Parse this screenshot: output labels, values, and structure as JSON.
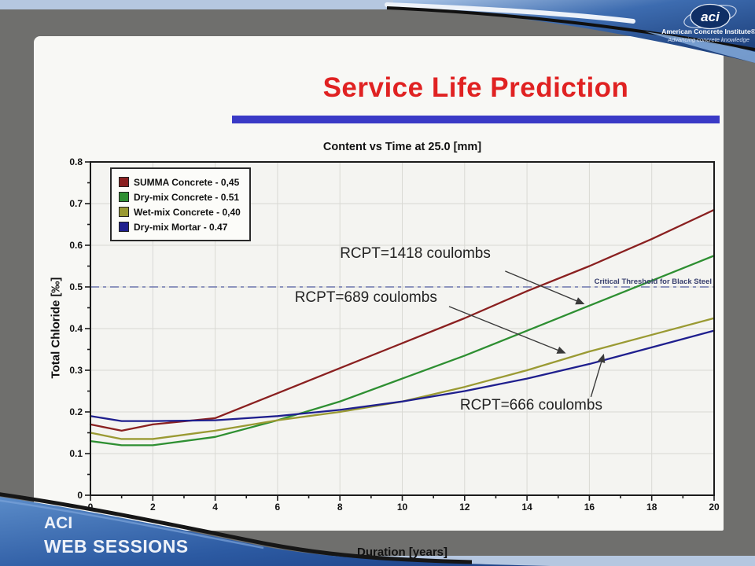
{
  "branding": {
    "logo_text": "aci",
    "institute_name": "American Concrete Institute®",
    "tagline": "Advancing concrete knowledge",
    "footer_line1": "ACI",
    "footer_line2": "WEB SESSIONS"
  },
  "slide": {
    "title": "Service Life Prediction",
    "title_color": "#e02222",
    "divider_color": "#3a3ac6"
  },
  "chart_data": {
    "type": "line",
    "title": "Content vs Time at 25.0 [mm]",
    "xlabel": "Duration [years]",
    "ylabel": "Total Chloride [‰]",
    "xlim": [
      0,
      20
    ],
    "ylim": [
      0,
      0.8
    ],
    "xticks": [
      0,
      2,
      4,
      6,
      8,
      10,
      12,
      14,
      16,
      18,
      20
    ],
    "yticks": [
      0,
      0.1,
      0.2,
      0.3,
      0.4,
      0.5,
      0.6,
      0.7,
      0.8
    ],
    "grid": true,
    "legend_position": "upper-left",
    "x": [
      0,
      1,
      2,
      4,
      6,
      8,
      10,
      12,
      14,
      16,
      18,
      20
    ],
    "series": [
      {
        "name": "SUMMA Concrete - 0,45",
        "color": "#8a2020",
        "values": [
          0.17,
          0.155,
          0.17,
          0.185,
          0.245,
          0.305,
          0.365,
          0.425,
          0.49,
          0.55,
          0.615,
          0.685
        ]
      },
      {
        "name": "Dry-mix Concrete - 0.51",
        "color": "#2e8f32",
        "values": [
          0.13,
          0.12,
          0.12,
          0.14,
          0.18,
          0.225,
          0.28,
          0.335,
          0.395,
          0.455,
          0.515,
          0.575
        ]
      },
      {
        "name": "Wet-mix Concrete - 0,40",
        "color": "#9a9a33",
        "values": [
          0.15,
          0.135,
          0.135,
          0.155,
          0.18,
          0.2,
          0.225,
          0.26,
          0.3,
          0.345,
          0.385,
          0.425
        ]
      },
      {
        "name": "Dry-mix Mortar - 0.47",
        "color": "#1f1f8e",
        "values": [
          0.19,
          0.178,
          0.178,
          0.18,
          0.19,
          0.205,
          0.225,
          0.25,
          0.28,
          0.315,
          0.355,
          0.395
        ]
      }
    ],
    "threshold": {
      "value": 0.5,
      "label": "Critical Threshold for Black Steel",
      "line_color": "#6b74ad",
      "label_color": "#39406e"
    },
    "annotations": [
      {
        "text": "RCPT=1418 coulombs",
        "series": "Dry-mix Concrete - 0.51",
        "text_anchor": [
          8.0,
          0.6
        ],
        "arrow_from": [
          13.3,
          0.538
        ],
        "arrow_to": [
          15.8,
          0.46
        ]
      },
      {
        "text": "RCPT=689 coulombs",
        "series": "Wet-mix Concrete - 0,40",
        "text_anchor": [
          6.55,
          0.494
        ],
        "arrow_from": [
          11.5,
          0.453
        ],
        "arrow_to": [
          15.2,
          0.342
        ]
      },
      {
        "text": "RCPT=666 coulombs",
        "series": "Dry-mix Mortar - 0.47",
        "text_anchor": [
          11.85,
          0.236
        ],
        "arrow_from": [
          16.05,
          0.236
        ],
        "arrow_to": [
          16.45,
          0.336
        ]
      }
    ]
  }
}
